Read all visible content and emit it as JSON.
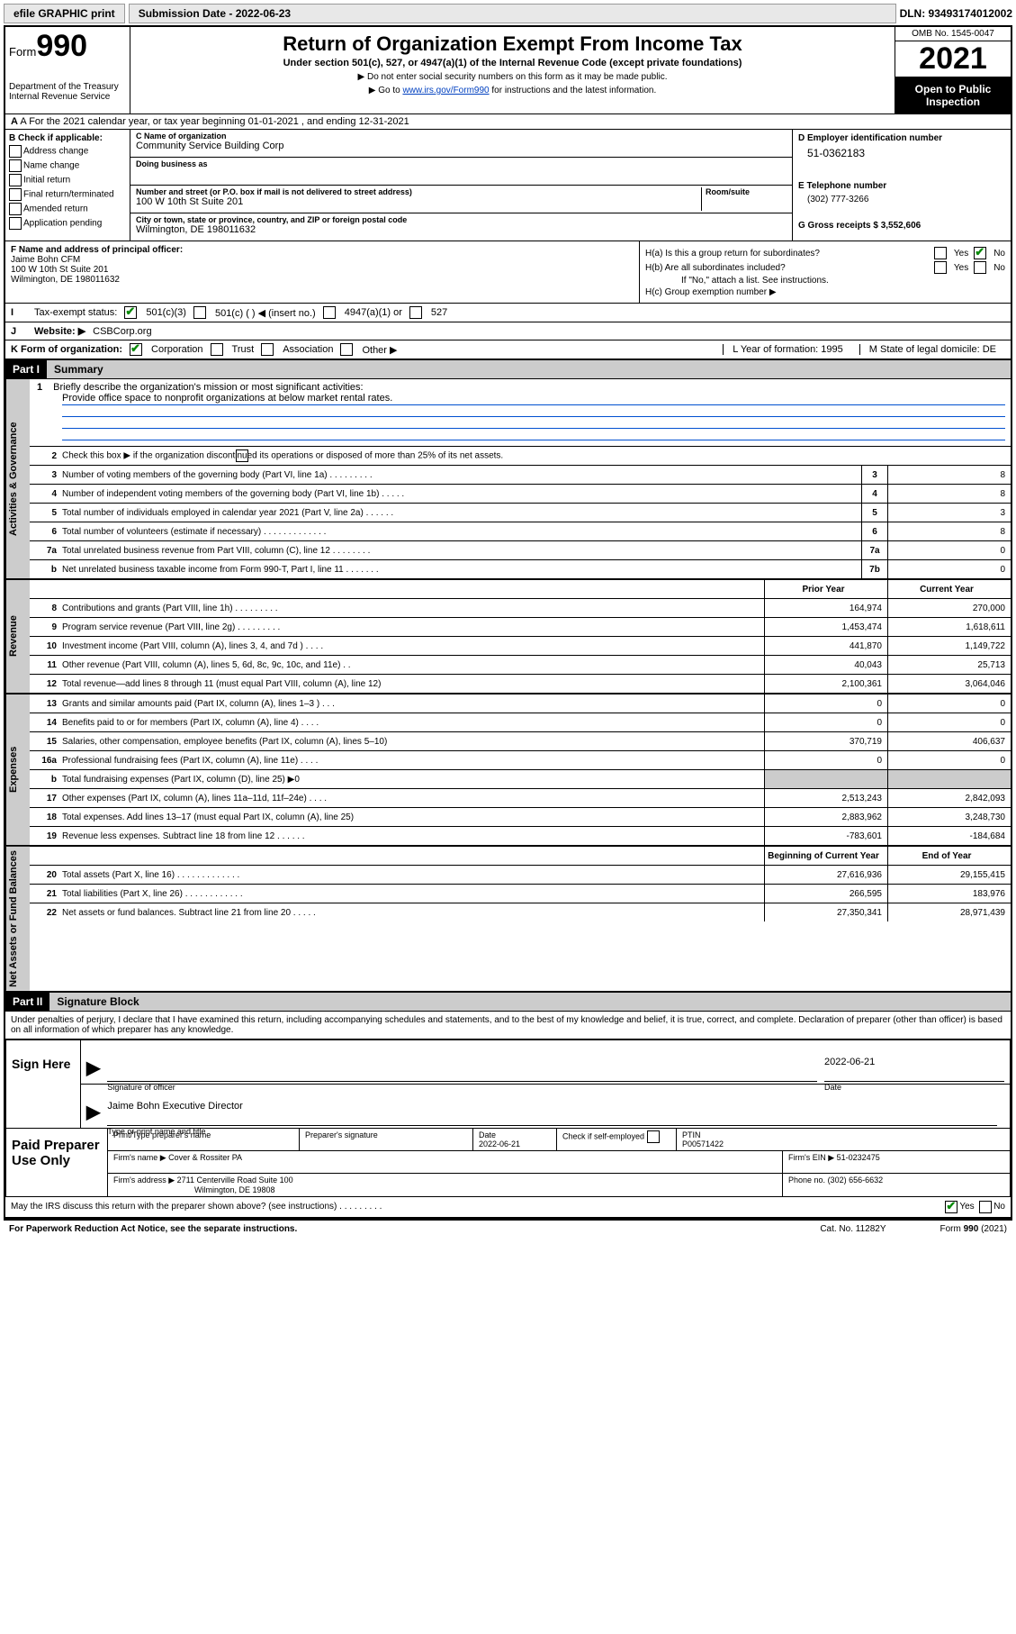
{
  "topbar": {
    "efile": "efile GRAPHIC print",
    "submission": "Submission Date - 2022-06-23",
    "dln": "DLN: 93493174012002"
  },
  "header": {
    "form_prefix": "Form",
    "form_number": "990",
    "dept": "Department of the Treasury",
    "irs": "Internal Revenue Service",
    "title": "Return of Organization Exempt From Income Tax",
    "subtitle": "Under section 501(c), 527, or 4947(a)(1) of the Internal Revenue Code (except private foundations)",
    "note1": "▶ Do not enter social security numbers on this form as it may be made public.",
    "note2_pre": "▶ Go to ",
    "note2_link": "www.irs.gov/Form990",
    "note2_post": " for instructions and the latest information.",
    "omb": "OMB No. 1545-0047",
    "year": "2021",
    "open_public": "Open to Public Inspection"
  },
  "rowA": "A For the 2021 calendar year, or tax year beginning 01-01-2021   , and ending 12-31-2021",
  "colB": {
    "header": "B Check if applicable:",
    "opts": [
      "Address change",
      "Name change",
      "Initial return",
      "Final return/terminated",
      "Amended return",
      "Application pending"
    ]
  },
  "colC": {
    "name_label": "C Name of organization",
    "name": "Community Service Building Corp",
    "dba_label": "Doing business as",
    "dba": "",
    "addr_label": "Number and street (or P.O. box if mail is not delivered to street address)",
    "room_label": "Room/suite",
    "addr": "100 W 10th St Suite 201",
    "city_label": "City or town, state or province, country, and ZIP or foreign postal code",
    "city": "Wilmington, DE  198011632"
  },
  "colD": {
    "ein_label": "D Employer identification number",
    "ein": "51-0362183",
    "tel_label": "E Telephone number",
    "tel": "(302) 777-3266",
    "gross_label": "G Gross receipts $",
    "gross": "3,552,606"
  },
  "colF": {
    "label": "F Name and address of principal officer:",
    "name": "Jaime Bohn CFM",
    "addr1": "100 W 10th St Suite 201",
    "addr2": "Wilmington, DE  198011632"
  },
  "colH": {
    "a_label": "H(a)  Is this a group return for subordinates?",
    "b_label": "H(b)  Are all subordinates included?",
    "b_note": "If \"No,\" attach a list. See instructions.",
    "c_label": "H(c)  Group exemption number ▶",
    "yes": "Yes",
    "no": "No"
  },
  "rowI": {
    "label": "Tax-exempt status:",
    "o1": "501(c)(3)",
    "o2": "501(c) (   ) ◀ (insert no.)",
    "o3": "4947(a)(1) or",
    "o4": "527"
  },
  "rowJ": {
    "label": "Website: ▶",
    "value": "CSBCorp.org"
  },
  "rowK": {
    "label": "K Form of organization:",
    "o1": "Corporation",
    "o2": "Trust",
    "o3": "Association",
    "o4": "Other ▶",
    "L": "L Year of formation: 1995",
    "M": "M State of legal domicile: DE"
  },
  "part1": {
    "header": "Part I",
    "title": "Summary",
    "side_gov": "Activities & Governance",
    "side_rev": "Revenue",
    "side_exp": "Expenses",
    "side_net": "Net Assets or Fund Balances",
    "line1_label": "1",
    "line1": "Briefly describe the organization's mission or most significant activities:",
    "mission": "Provide office space to nonprofit organizations at below market rental rates.",
    "line2": "Check this box ▶        if the organization discontinued its operations or disposed of more than 25% of its net assets.",
    "lines_gov": [
      {
        "n": "3",
        "d": "Number of voting members of the governing body (Part VI, line 1a)   .    .    .    .    .    .    .    .    .",
        "b": "3",
        "v": "8"
      },
      {
        "n": "4",
        "d": "Number of independent voting members of the governing body (Part VI, line 1b)   .    .    .    .    .",
        "b": "4",
        "v": "8"
      },
      {
        "n": "5",
        "d": "Total number of individuals employed in calendar year 2021 (Part V, line 2a)   .    .    .    .    .    .",
        "b": "5",
        "v": "3"
      },
      {
        "n": "6",
        "d": "Total number of volunteers (estimate if necessary)   .    .    .    .    .    .    .    .    .    .    .    .    .",
        "b": "6",
        "v": "8"
      },
      {
        "n": "7a",
        "d": "Total unrelated business revenue from Part VIII, column (C), line 12   .    .    .    .    .    .    .    .",
        "b": "7a",
        "v": "0"
      },
      {
        "n": "b",
        "d": "Net unrelated business taxable income from Form 990-T, Part I, line 11   .    .    .    .    .    .    .",
        "b": "7b",
        "v": "0"
      }
    ],
    "col_prior": "Prior Year",
    "col_curr": "Current Year",
    "lines_rev": [
      {
        "n": "8",
        "d": "Contributions and grants (Part VIII, line 1h)   .    .    .    .    .    .    .    .    .",
        "p": "164,974",
        "c": "270,000"
      },
      {
        "n": "9",
        "d": "Program service revenue (Part VIII, line 2g)   .    .    .    .    .    .    .    .    .",
        "p": "1,453,474",
        "c": "1,618,611"
      },
      {
        "n": "10",
        "d": "Investment income (Part VIII, column (A), lines 3, 4, and 7d )   .    .    .    .",
        "p": "441,870",
        "c": "1,149,722"
      },
      {
        "n": "11",
        "d": "Other revenue (Part VIII, column (A), lines 5, 6d, 8c, 9c, 10c, and 11e)   .    .",
        "p": "40,043",
        "c": "25,713"
      },
      {
        "n": "12",
        "d": "Total revenue—add lines 8 through 11 (must equal Part VIII, column (A), line 12)",
        "p": "2,100,361",
        "c": "3,064,046"
      }
    ],
    "lines_exp": [
      {
        "n": "13",
        "d": "Grants and similar amounts paid (Part IX, column (A), lines 1–3 )   .    .    .",
        "p": "0",
        "c": "0"
      },
      {
        "n": "14",
        "d": "Benefits paid to or for members (Part IX, column (A), line 4)   .    .    .    .",
        "p": "0",
        "c": "0"
      },
      {
        "n": "15",
        "d": "Salaries, other compensation, employee benefits (Part IX, column (A), lines 5–10)",
        "p": "370,719",
        "c": "406,637"
      },
      {
        "n": "16a",
        "d": "Professional fundraising fees (Part IX, column (A), line 11e)   .    .    .    .",
        "p": "0",
        "c": "0"
      },
      {
        "n": "b",
        "d": "Total fundraising expenses (Part IX, column (D), line 25) ▶0",
        "p": "",
        "c": "",
        "shaded": true
      },
      {
        "n": "17",
        "d": "Other expenses (Part IX, column (A), lines 11a–11d, 11f–24e)   .    .    .    .",
        "p": "2,513,243",
        "c": "2,842,093"
      },
      {
        "n": "18",
        "d": "Total expenses. Add lines 13–17 (must equal Part IX, column (A), line 25)",
        "p": "2,883,962",
        "c": "3,248,730"
      },
      {
        "n": "19",
        "d": "Revenue less expenses. Subtract line 18 from line 12   .    .    .    .    .    .",
        "p": "-783,601",
        "c": "-184,684"
      }
    ],
    "col_begin": "Beginning of Current Year",
    "col_end": "End of Year",
    "lines_net": [
      {
        "n": "20",
        "d": "Total assets (Part X, line 16)   .    .    .    .    .    .    .    .    .    .    .    .    .",
        "p": "27,616,936",
        "c": "29,155,415"
      },
      {
        "n": "21",
        "d": "Total liabilities (Part X, line 26)   .    .    .    .    .    .    .    .    .    .    .    .",
        "p": "266,595",
        "c": "183,976"
      },
      {
        "n": "22",
        "d": "Net assets or fund balances. Subtract line 21 from line 20   .    .    .    .    .",
        "p": "27,350,341",
        "c": "28,971,439"
      }
    ]
  },
  "part2": {
    "header": "Part II",
    "title": "Signature Block",
    "declaration": "Under penalties of perjury, I declare that I have examined this return, including accompanying schedules and statements, and to the best of my knowledge and belief, it is true, correct, and complete. Declaration of preparer (other than officer) is based on all information of which preparer has any knowledge."
  },
  "sign": {
    "label": "Sign Here",
    "sig_officer": "Signature of officer",
    "date": "Date",
    "date_val": "2022-06-21",
    "name": "Jaime Bohn  Executive Director",
    "name_label": "Type or print name and title"
  },
  "paid": {
    "label": "Paid Preparer Use Only",
    "h1": "Print/Type preparer's name",
    "h2": "Preparer's signature",
    "h3": "Date",
    "h3v": "2022-06-21",
    "h4": "Check        if self-employed",
    "h5": "PTIN",
    "h5v": "P00571422",
    "firm_name_l": "Firm's name     ▶",
    "firm_name": "Cover & Rossiter PA",
    "firm_ein_l": "Firm's EIN ▶",
    "firm_ein": "51-0232475",
    "firm_addr_l": "Firm's address ▶",
    "firm_addr1": "2711 Centerville Road Suite 100",
    "firm_addr2": "Wilmington, DE  19808",
    "phone_l": "Phone no.",
    "phone": "(302) 656-6632"
  },
  "footer": {
    "discuss": "May the IRS discuss this return with the preparer shown above? (see instructions)   .    .    .    .    .    .    .    .    .",
    "yes": "Yes",
    "no": "No",
    "paperwork": "For Paperwork Reduction Act Notice, see the separate instructions.",
    "cat": "Cat. No. 11282Y",
    "form": "Form 990 (2021)"
  }
}
